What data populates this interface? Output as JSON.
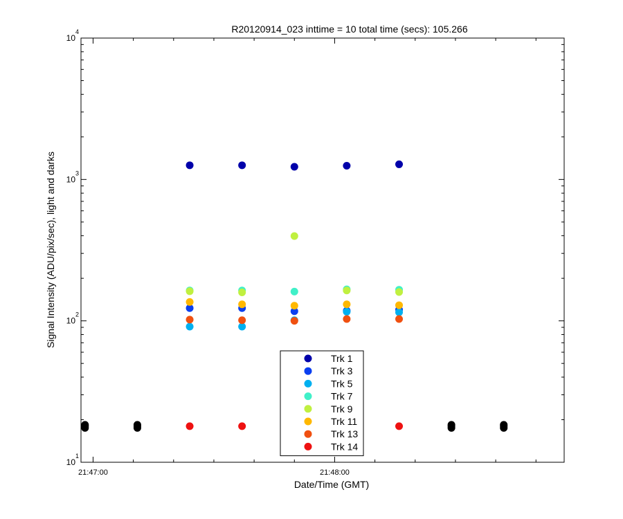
{
  "chart_data": {
    "type": "scatter",
    "title": "R20120914_023 inttime = 10 total time (secs): 105.266",
    "xlabel": "Date/Time (GMT)",
    "ylabel": "Signal Intensity (ADU/pix/sec), light and darks",
    "y_scale": "log",
    "ylim": [
      10,
      10000
    ],
    "xlim": [
      "21:46:57",
      "21:48:57"
    ],
    "x_ticks": [
      "21:47:00",
      "21:48:00"
    ],
    "y_ticks": [
      {
        "base": "10",
        "exp": "1",
        "value": 10
      },
      {
        "base": "10",
        "exp": "2",
        "value": 100
      },
      {
        "base": "10",
        "exp": "3",
        "value": 1000
      },
      {
        "base": "10",
        "exp": "4",
        "value": 10000
      }
    ],
    "grid": false,
    "legend_position": "bottom-center",
    "series": [
      {
        "name": "Trk 1",
        "color": "#0000AA",
        "points": [
          {
            "x": "21:47:24",
            "y": 1260
          },
          {
            "x": "21:47:37",
            "y": 1260
          },
          {
            "x": "21:47:50",
            "y": 1230
          },
          {
            "x": "21:48:03",
            "y": 1250
          },
          {
            "x": "21:48:16",
            "y": 1280
          }
        ]
      },
      {
        "name": "Trk 3",
        "color": "#0A3FF0",
        "points": [
          {
            "x": "21:47:24",
            "y": 123
          },
          {
            "x": "21:47:37",
            "y": 123
          },
          {
            "x": "21:47:50",
            "y": 117
          },
          {
            "x": "21:48:03",
            "y": 118
          },
          {
            "x": "21:48:16",
            "y": 120
          }
        ]
      },
      {
        "name": "Trk 5",
        "color": "#00B0F0",
        "points": [
          {
            "x": "21:47:24",
            "y": 91
          },
          {
            "x": "21:47:37",
            "y": 91
          },
          {
            "x": "21:47:50",
            "y": 101
          },
          {
            "x": "21:48:03",
            "y": 116
          },
          {
            "x": "21:48:16",
            "y": 115
          }
        ]
      },
      {
        "name": "Trk 7",
        "color": "#40F0C8",
        "points": [
          {
            "x": "21:47:24",
            "y": 164
          },
          {
            "x": "21:47:37",
            "y": 164
          },
          {
            "x": "21:47:50",
            "y": 161
          },
          {
            "x": "21:48:03",
            "y": 167
          },
          {
            "x": "21:48:16",
            "y": 166
          }
        ]
      },
      {
        "name": "Trk 9",
        "color": "#C0F040",
        "points": [
          {
            "x": "21:47:24",
            "y": 162
          },
          {
            "x": "21:47:37",
            "y": 159
          },
          {
            "x": "21:47:50",
            "y": 398
          },
          {
            "x": "21:48:03",
            "y": 164
          },
          {
            "x": "21:48:16",
            "y": 160
          }
        ]
      },
      {
        "name": "Trk 11",
        "color": "#FFB800",
        "points": [
          {
            "x": "21:47:24",
            "y": 136
          },
          {
            "x": "21:47:37",
            "y": 131
          },
          {
            "x": "21:47:50",
            "y": 128
          },
          {
            "x": "21:48:03",
            "y": 131
          },
          {
            "x": "21:48:16",
            "y": 129
          }
        ]
      },
      {
        "name": "Trk 13",
        "color": "#F05010",
        "points": [
          {
            "x": "21:47:24",
            "y": 102
          },
          {
            "x": "21:47:37",
            "y": 101
          },
          {
            "x": "21:47:50",
            "y": 100
          },
          {
            "x": "21:48:03",
            "y": 103
          },
          {
            "x": "21:48:16",
            "y": 103
          }
        ]
      },
      {
        "name": "Trk 14",
        "color": "#EE1111",
        "points": [
          {
            "x": "21:47:24",
            "y": 18
          },
          {
            "x": "21:47:37",
            "y": 18
          },
          {
            "x": "21:48:16",
            "y": 18
          }
        ]
      }
    ],
    "darks": {
      "color": "#000000",
      "points": [
        {
          "x": "21:46:58",
          "y": 17.5
        },
        {
          "x": "21:46:58",
          "y": 18.0
        },
        {
          "x": "21:46:58",
          "y": 18.4
        },
        {
          "x": "21:47:11",
          "y": 17.5
        },
        {
          "x": "21:47:11",
          "y": 18.0
        },
        {
          "x": "21:47:11",
          "y": 18.4
        },
        {
          "x": "21:48:29",
          "y": 17.5
        },
        {
          "x": "21:48:29",
          "y": 18.0
        },
        {
          "x": "21:48:29",
          "y": 18.4
        },
        {
          "x": "21:48:42",
          "y": 17.5
        },
        {
          "x": "21:48:42",
          "y": 18.0
        },
        {
          "x": "21:48:42",
          "y": 18.4
        }
      ]
    }
  }
}
